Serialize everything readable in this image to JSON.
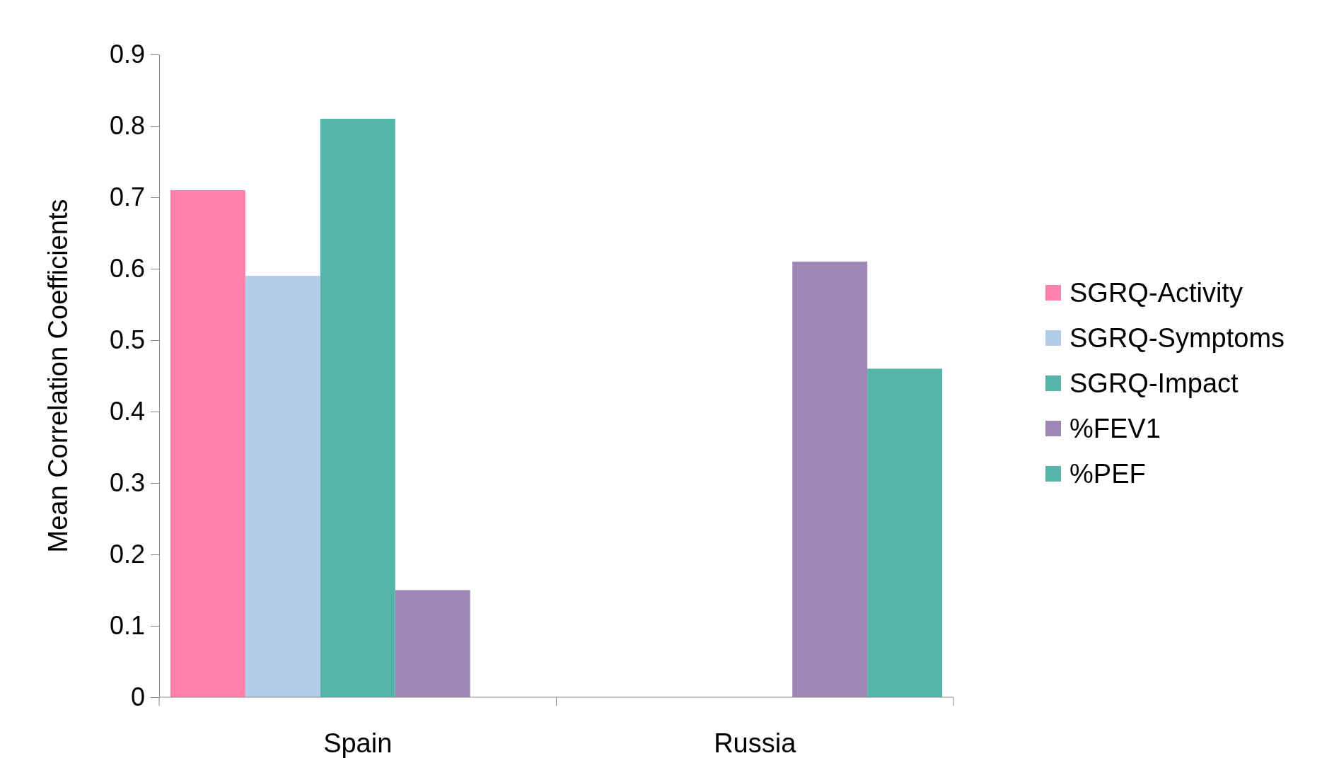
{
  "chart_data": {
    "type": "bar",
    "ylabel": "Mean Correlation Coefficients",
    "categories": [
      "Spain",
      "Russia"
    ],
    "series": [
      {
        "name": "SGRQ-Activity",
        "color": "#ff80a8",
        "values": [
          0.71,
          null
        ]
      },
      {
        "name": "SGRQ-Symptoms",
        "color": "#b3cde9",
        "values": [
          0.59,
          null
        ]
      },
      {
        "name": "SGRQ-Impact",
        "color": "#55b5a9",
        "values": [
          0.81,
          null
        ]
      },
      {
        "name": "%FEV1",
        "color": "#9c87b5",
        "values": [
          0.15,
          0.61
        ]
      },
      {
        "name": "%PEF",
        "color": "#55b5a9",
        "values": [
          null,
          0.46
        ]
      }
    ],
    "ylim": [
      0,
      0.9
    ],
    "yticks": [
      {
        "value": 0,
        "label": "0"
      },
      0.1,
      0.2,
      0.3,
      0.4,
      0.5,
      0.6,
      0.7,
      0.8,
      0.9
    ],
    "grid": false,
    "legend": "right"
  }
}
